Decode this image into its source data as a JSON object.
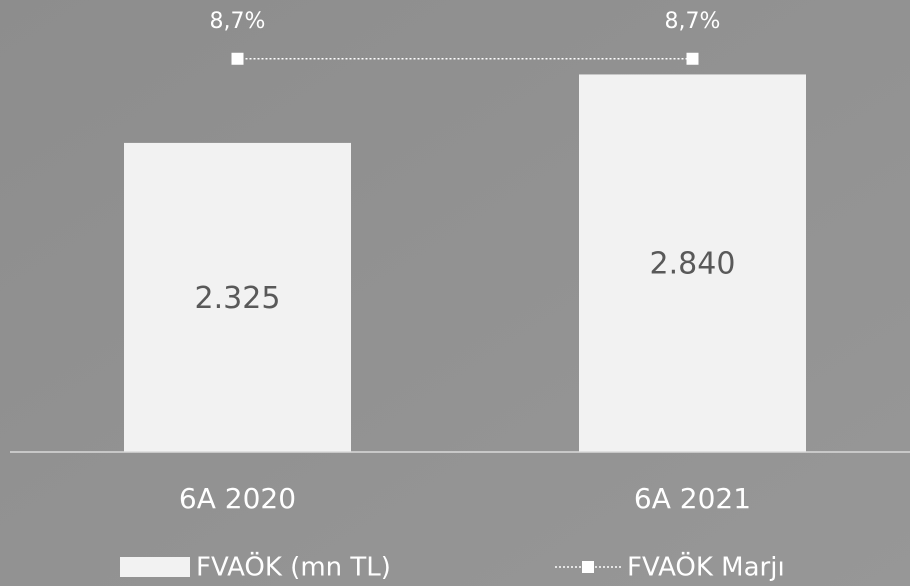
{
  "chart_data": {
    "type": "bar",
    "categories": [
      "6A 2020",
      "6A 2021"
    ],
    "series": [
      {
        "name": "FVAÖK (mn TL)",
        "type": "bar",
        "color": "#f2f2f2",
        "values": [
          2325,
          2840
        ],
        "value_labels": [
          "2.325",
          "2.840"
        ]
      },
      {
        "name": "FVAÖK Marjı",
        "type": "line",
        "axis": "y2",
        "color": "#ffffff",
        "values": [
          8.7,
          8.7
        ],
        "value_labels": [
          "8,7%",
          "8,7%"
        ]
      }
    ],
    "ylim": [
      0,
      3400
    ],
    "y2lim": [
      0,
      10
    ],
    "legend": "bottom"
  }
}
